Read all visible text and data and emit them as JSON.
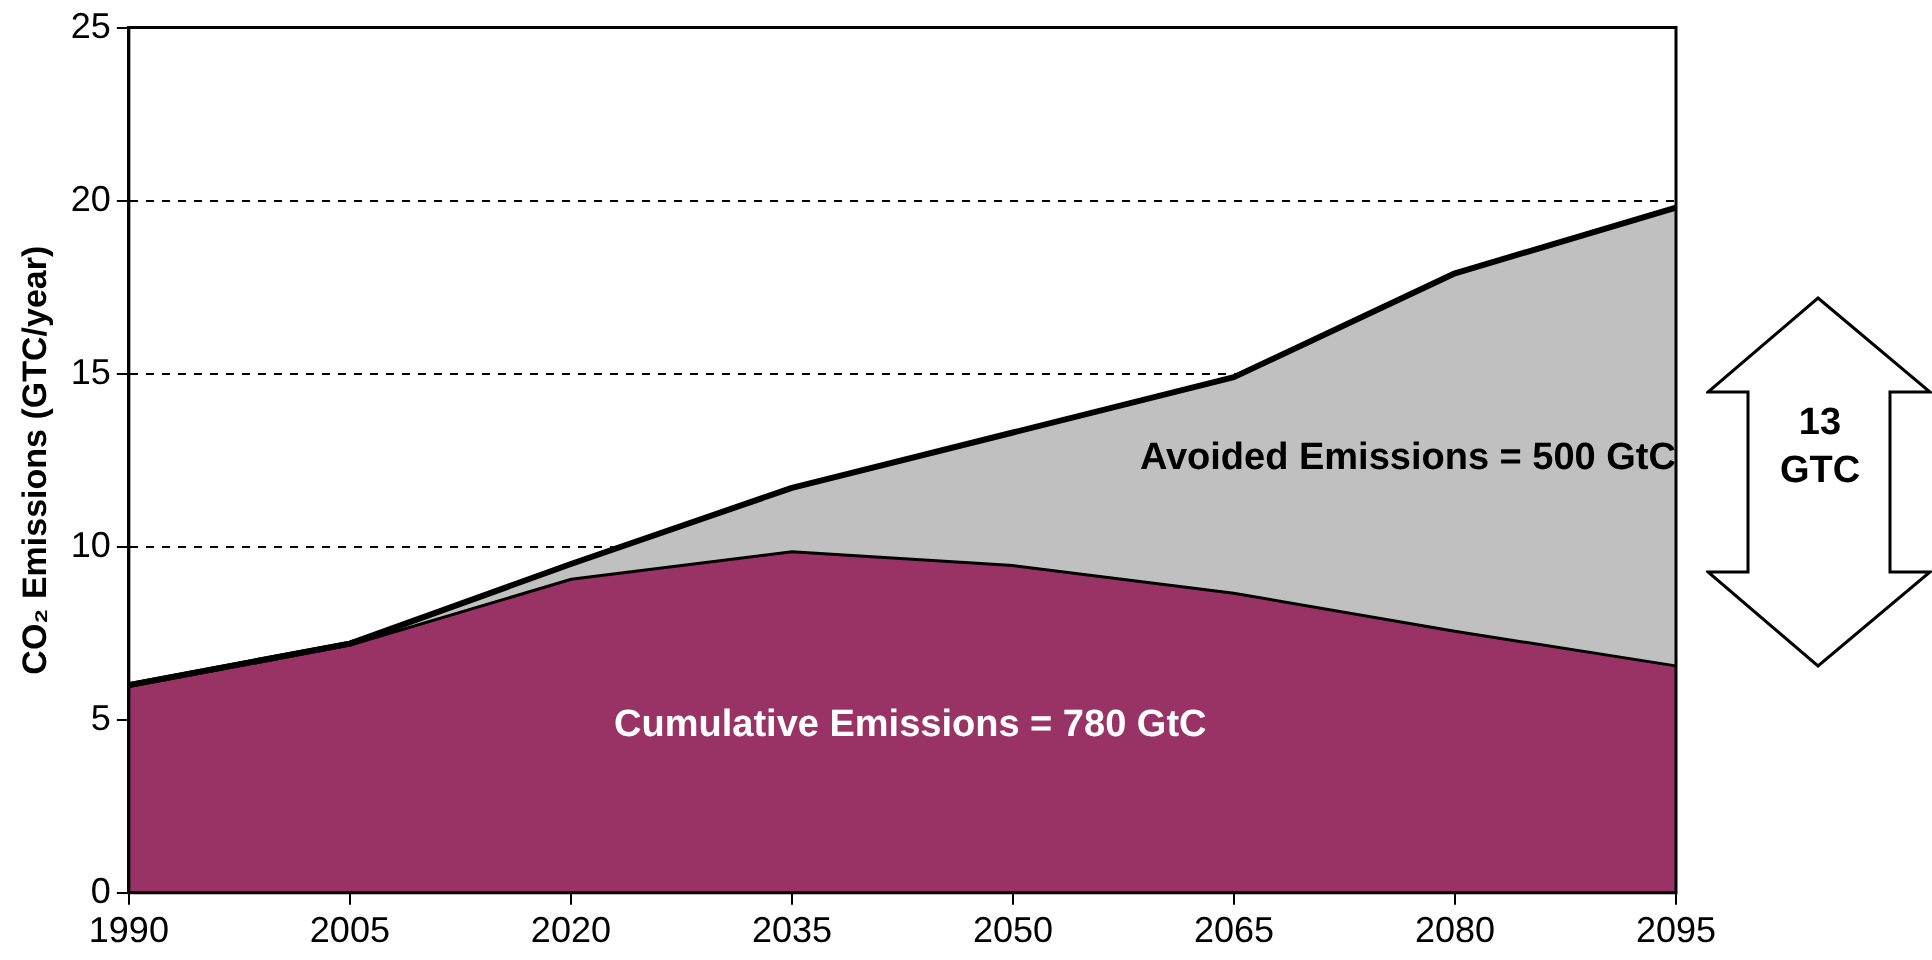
{
  "chart_data": {
    "type": "area",
    "ylabel": "CO₂ Emissions (GTC/year)",
    "x": [
      1990,
      2005,
      2020,
      2035,
      2050,
      2065,
      2080,
      2095
    ],
    "series": [
      {
        "color": "#993366",
        "values": [
          6.0,
          7.2,
          9.1,
          9.9,
          9.5,
          8.7,
          7.6,
          6.6
        ]
      },
      {
        "color": "#c0c0c0",
        "values": [
          6.0,
          7.2,
          9.5,
          11.7,
          13.3,
          14.9,
          17.9,
          19.8
        ]
      }
    ],
    "xlim": [
      1990,
      2095
    ],
    "xticks": [
      1990,
      2005,
      2020,
      2035,
      2050,
      2065,
      2080,
      2095
    ],
    "ylim": [
      0,
      25
    ],
    "yticks": [
      0,
      5,
      10,
      15,
      20,
      25
    ],
    "grid": "y",
    "legend": false,
    "marker": "none",
    "line_style": "solid",
    "annotations": [
      "Cumulative Emissions = 780 GtC",
      "Avoided Emissions = 500 GtC",
      "13 GTC"
    ]
  }
}
